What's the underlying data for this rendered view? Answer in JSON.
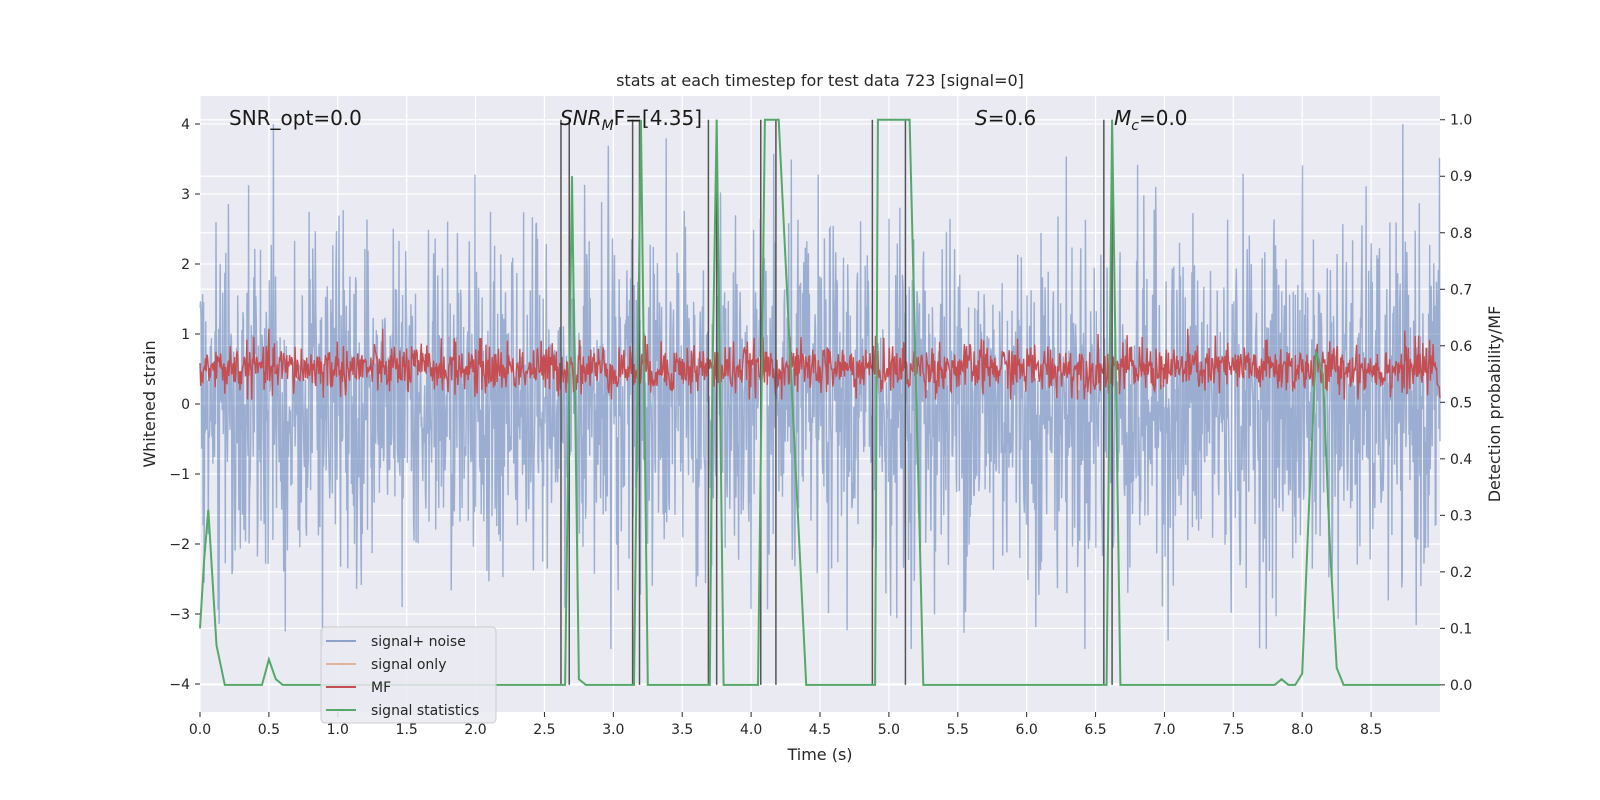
{
  "chart_data": {
    "type": "line",
    "title": "stats at each timestep for test data 723 [signal=0]",
    "xlabel": "Time (s)",
    "ylabel": "Whitened strain",
    "y2label": "Detection probability/MF",
    "xlim": [
      0,
      9.0
    ],
    "ylim": [
      -4.4,
      4.4
    ],
    "y2lim": [
      -0.048,
      1.042
    ],
    "x_ticks": [
      0.0,
      0.5,
      1.0,
      1.5,
      2.0,
      2.5,
      3.0,
      3.5,
      4.0,
      4.5,
      5.0,
      5.5,
      6.0,
      6.5,
      7.0,
      7.5,
      8.0,
      8.5
    ],
    "x_tick_labels": [
      "0.0",
      "0.5",
      "1.0",
      "1.5",
      "2.0",
      "2.5",
      "3.0",
      "3.5",
      "4.0",
      "4.5",
      "5.0",
      "5.5",
      "6.0",
      "6.5",
      "7.0",
      "7.5",
      "8.0",
      "8.5"
    ],
    "y_ticks": [
      4,
      3,
      2,
      1,
      0,
      -1,
      -2,
      -3,
      -4
    ],
    "y_tick_labels": [
      "4",
      "3",
      "2",
      "1",
      "0",
      "−1",
      "−2",
      "−3",
      "−4"
    ],
    "y2_ticks": [
      1.0,
      0.9,
      0.8,
      0.7,
      0.6,
      0.5,
      0.4,
      0.3,
      0.2,
      0.1,
      0.0
    ],
    "y2_tick_labels": [
      "1.0",
      "0.9",
      "0.8",
      "0.7",
      "0.6",
      "0.5",
      "0.4",
      "0.3",
      "0.2",
      "0.1",
      "0.0"
    ],
    "grid": true,
    "legend_position": "lower-left",
    "annotations": [
      {
        "label": "SNR_opt=0.0",
        "math": false
      },
      {
        "prefix": "SNR",
        "sub": "M",
        "suffix": "F=[4.35]",
        "math": true
      },
      {
        "prefix": "S",
        "sub": "",
        "suffix": "=0.6",
        "math": true
      },
      {
        "prefix": "M",
        "sub": "c",
        "suffix": "=0.0",
        "math": true
      }
    ],
    "series": [
      {
        "name": "signal+ noise",
        "color": "#4c72b0",
        "alpha": 0.5,
        "amplitude_envelope": [
          -3.5,
          4.0
        ]
      },
      {
        "name": "signal only",
        "color": "#dd8452",
        "values_constant": 0.0
      },
      {
        "name": "MF",
        "color": "#c44e52",
        "axis": "right",
        "range": [
          0.52,
          0.6
        ]
      },
      {
        "name": "signal statistics",
        "color": "#55a868",
        "axis": "right",
        "x": [
          0.0,
          0.03,
          0.06,
          0.12,
          0.18,
          0.2,
          0.3,
          0.4,
          0.45,
          0.5,
          0.55,
          0.6,
          0.8,
          1.0,
          1.5,
          2.0,
          2.5,
          2.6,
          2.65,
          2.7,
          2.75,
          2.8,
          3.0,
          3.1,
          3.15,
          3.2,
          3.25,
          3.3,
          3.5,
          3.7,
          3.72,
          3.75,
          3.8,
          3.9,
          4.0,
          4.05,
          4.1,
          4.15,
          4.2,
          4.3,
          4.4,
          4.6,
          4.9,
          4.92,
          5.0,
          5.1,
          5.15,
          5.25,
          5.5,
          6.0,
          6.5,
          6.58,
          6.62,
          6.68,
          6.75,
          7.0,
          7.5,
          7.8,
          7.85,
          7.9,
          7.95,
          8.0,
          8.05,
          8.1,
          8.15,
          8.2,
          8.25,
          8.3,
          8.5,
          9.0
        ],
        "values": [
          0.1,
          0.22,
          0.31,
          0.07,
          0.0,
          0.0,
          0.0,
          0.0,
          0.0,
          0.045,
          0.01,
          0.0,
          0.0,
          0.0,
          0.0,
          0.0,
          0.0,
          0.0,
          0.0,
          0.9,
          0.01,
          0.0,
          0.0,
          0.0,
          0.0,
          1.0,
          0.0,
          0.0,
          0.0,
          0.0,
          0.55,
          1.0,
          0.0,
          0.0,
          0.0,
          0.0,
          1.0,
          1.0,
          1.0,
          0.5,
          0.0,
          0.0,
          0.0,
          1.0,
          1.0,
          1.0,
          1.0,
          0.0,
          0.0,
          0.0,
          0.0,
          0.0,
          1.0,
          0.0,
          0.0,
          0.0,
          0.0,
          0.0,
          0.01,
          0.0,
          0.0,
          0.02,
          0.32,
          0.59,
          0.55,
          0.25,
          0.03,
          0.0,
          0.0,
          0.0
        ]
      }
    ],
    "vertical_lines_x": [
      2.62,
      2.68,
      3.14,
      3.19,
      3.69,
      3.75,
      4.07,
      4.18,
      4.88,
      5.12,
      6.56,
      6.62
    ],
    "vertical_lines_color": "#555555"
  }
}
